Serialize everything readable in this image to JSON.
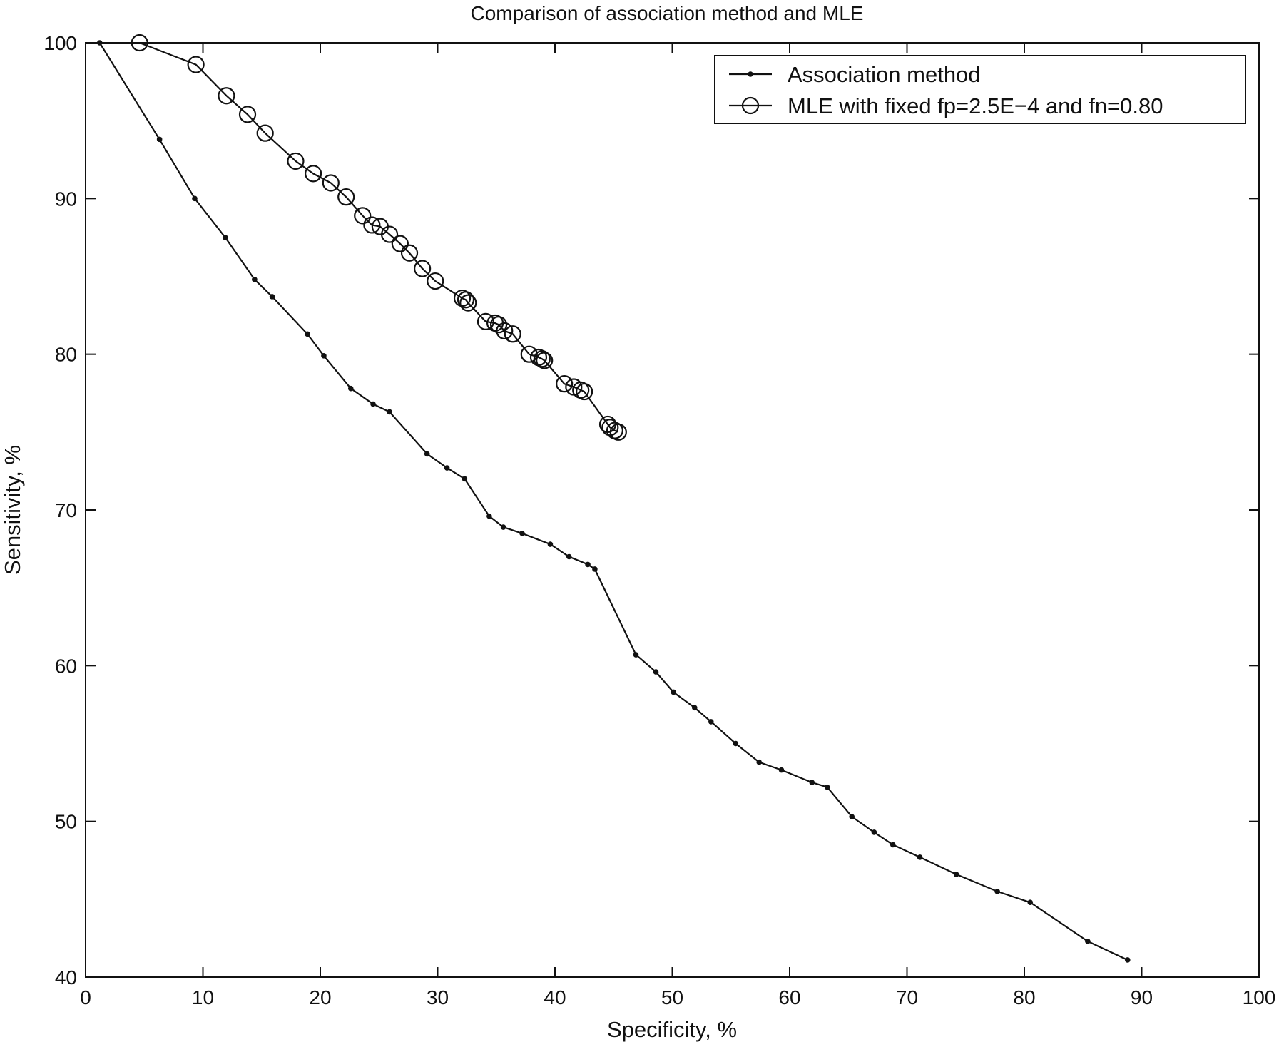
{
  "chart_data": {
    "type": "line",
    "title": "Comparison of association method and MLE",
    "xlabel": "Specificity, %",
    "ylabel": "Sensitivity, %",
    "xlim": [
      0,
      100
    ],
    "ylim": [
      40,
      100
    ],
    "xticks": [
      0,
      10,
      20,
      30,
      40,
      50,
      60,
      70,
      80,
      90,
      100
    ],
    "yticks": [
      40,
      50,
      60,
      70,
      80,
      90,
      100
    ],
    "grid": false,
    "legend_position": "top-right",
    "series": [
      {
        "name": "Association method",
        "marker": "dot",
        "x": [
          1.2,
          6.3,
          9.3,
          11.9,
          14.4,
          15.9,
          18.9,
          20.3,
          22.6,
          24.5,
          25.9,
          29.1,
          30.8,
          32.3,
          34.4,
          35.6,
          37.2,
          39.6,
          41.2,
          42.8,
          43.4,
          46.9,
          48.6,
          50.1,
          51.9,
          53.3,
          55.4,
          57.4,
          59.3,
          61.9,
          63.2,
          65.3,
          67.2,
          68.8,
          71.1,
          74.2,
          77.7,
          80.5,
          85.4,
          88.8
        ],
        "y": [
          100,
          93.8,
          90.0,
          87.5,
          84.8,
          83.7,
          81.3,
          79.9,
          77.8,
          76.8,
          76.3,
          73.6,
          72.7,
          72.0,
          69.6,
          68.9,
          68.5,
          67.8,
          67.0,
          66.5,
          66.2,
          60.7,
          59.6,
          58.3,
          57.3,
          56.4,
          55.0,
          53.8,
          53.3,
          52.5,
          52.2,
          50.3,
          49.3,
          48.5,
          47.7,
          46.6,
          45.5,
          44.8,
          42.3,
          41.1
        ]
      },
      {
        "name": "MLE with fixed fp=2.5E−4 and fn=0.80",
        "marker": "circle",
        "x": [
          4.6,
          9.4,
          12.0,
          13.8,
          15.3,
          17.9,
          19.4,
          20.9,
          22.2,
          23.6,
          24.4,
          25.1,
          25.9,
          26.8,
          27.6,
          28.7,
          29.8,
          32.1,
          32.4,
          32.6,
          34.1,
          34.9,
          35.2,
          35.7,
          36.4,
          37.8,
          38.6,
          38.9,
          39.1,
          40.8,
          41.6,
          42.2,
          42.5,
          44.5,
          44.7,
          45.1,
          45.4
        ],
        "y": [
          100,
          98.6,
          96.6,
          95.4,
          94.2,
          92.4,
          91.6,
          91.0,
          90.1,
          88.9,
          88.3,
          88.2,
          87.7,
          87.1,
          86.5,
          85.5,
          84.7,
          83.6,
          83.5,
          83.3,
          82.1,
          82.0,
          81.9,
          81.5,
          81.3,
          80.0,
          79.8,
          79.7,
          79.6,
          78.1,
          77.9,
          77.7,
          77.6,
          75.5,
          75.3,
          75.1,
          75.0
        ]
      }
    ]
  }
}
